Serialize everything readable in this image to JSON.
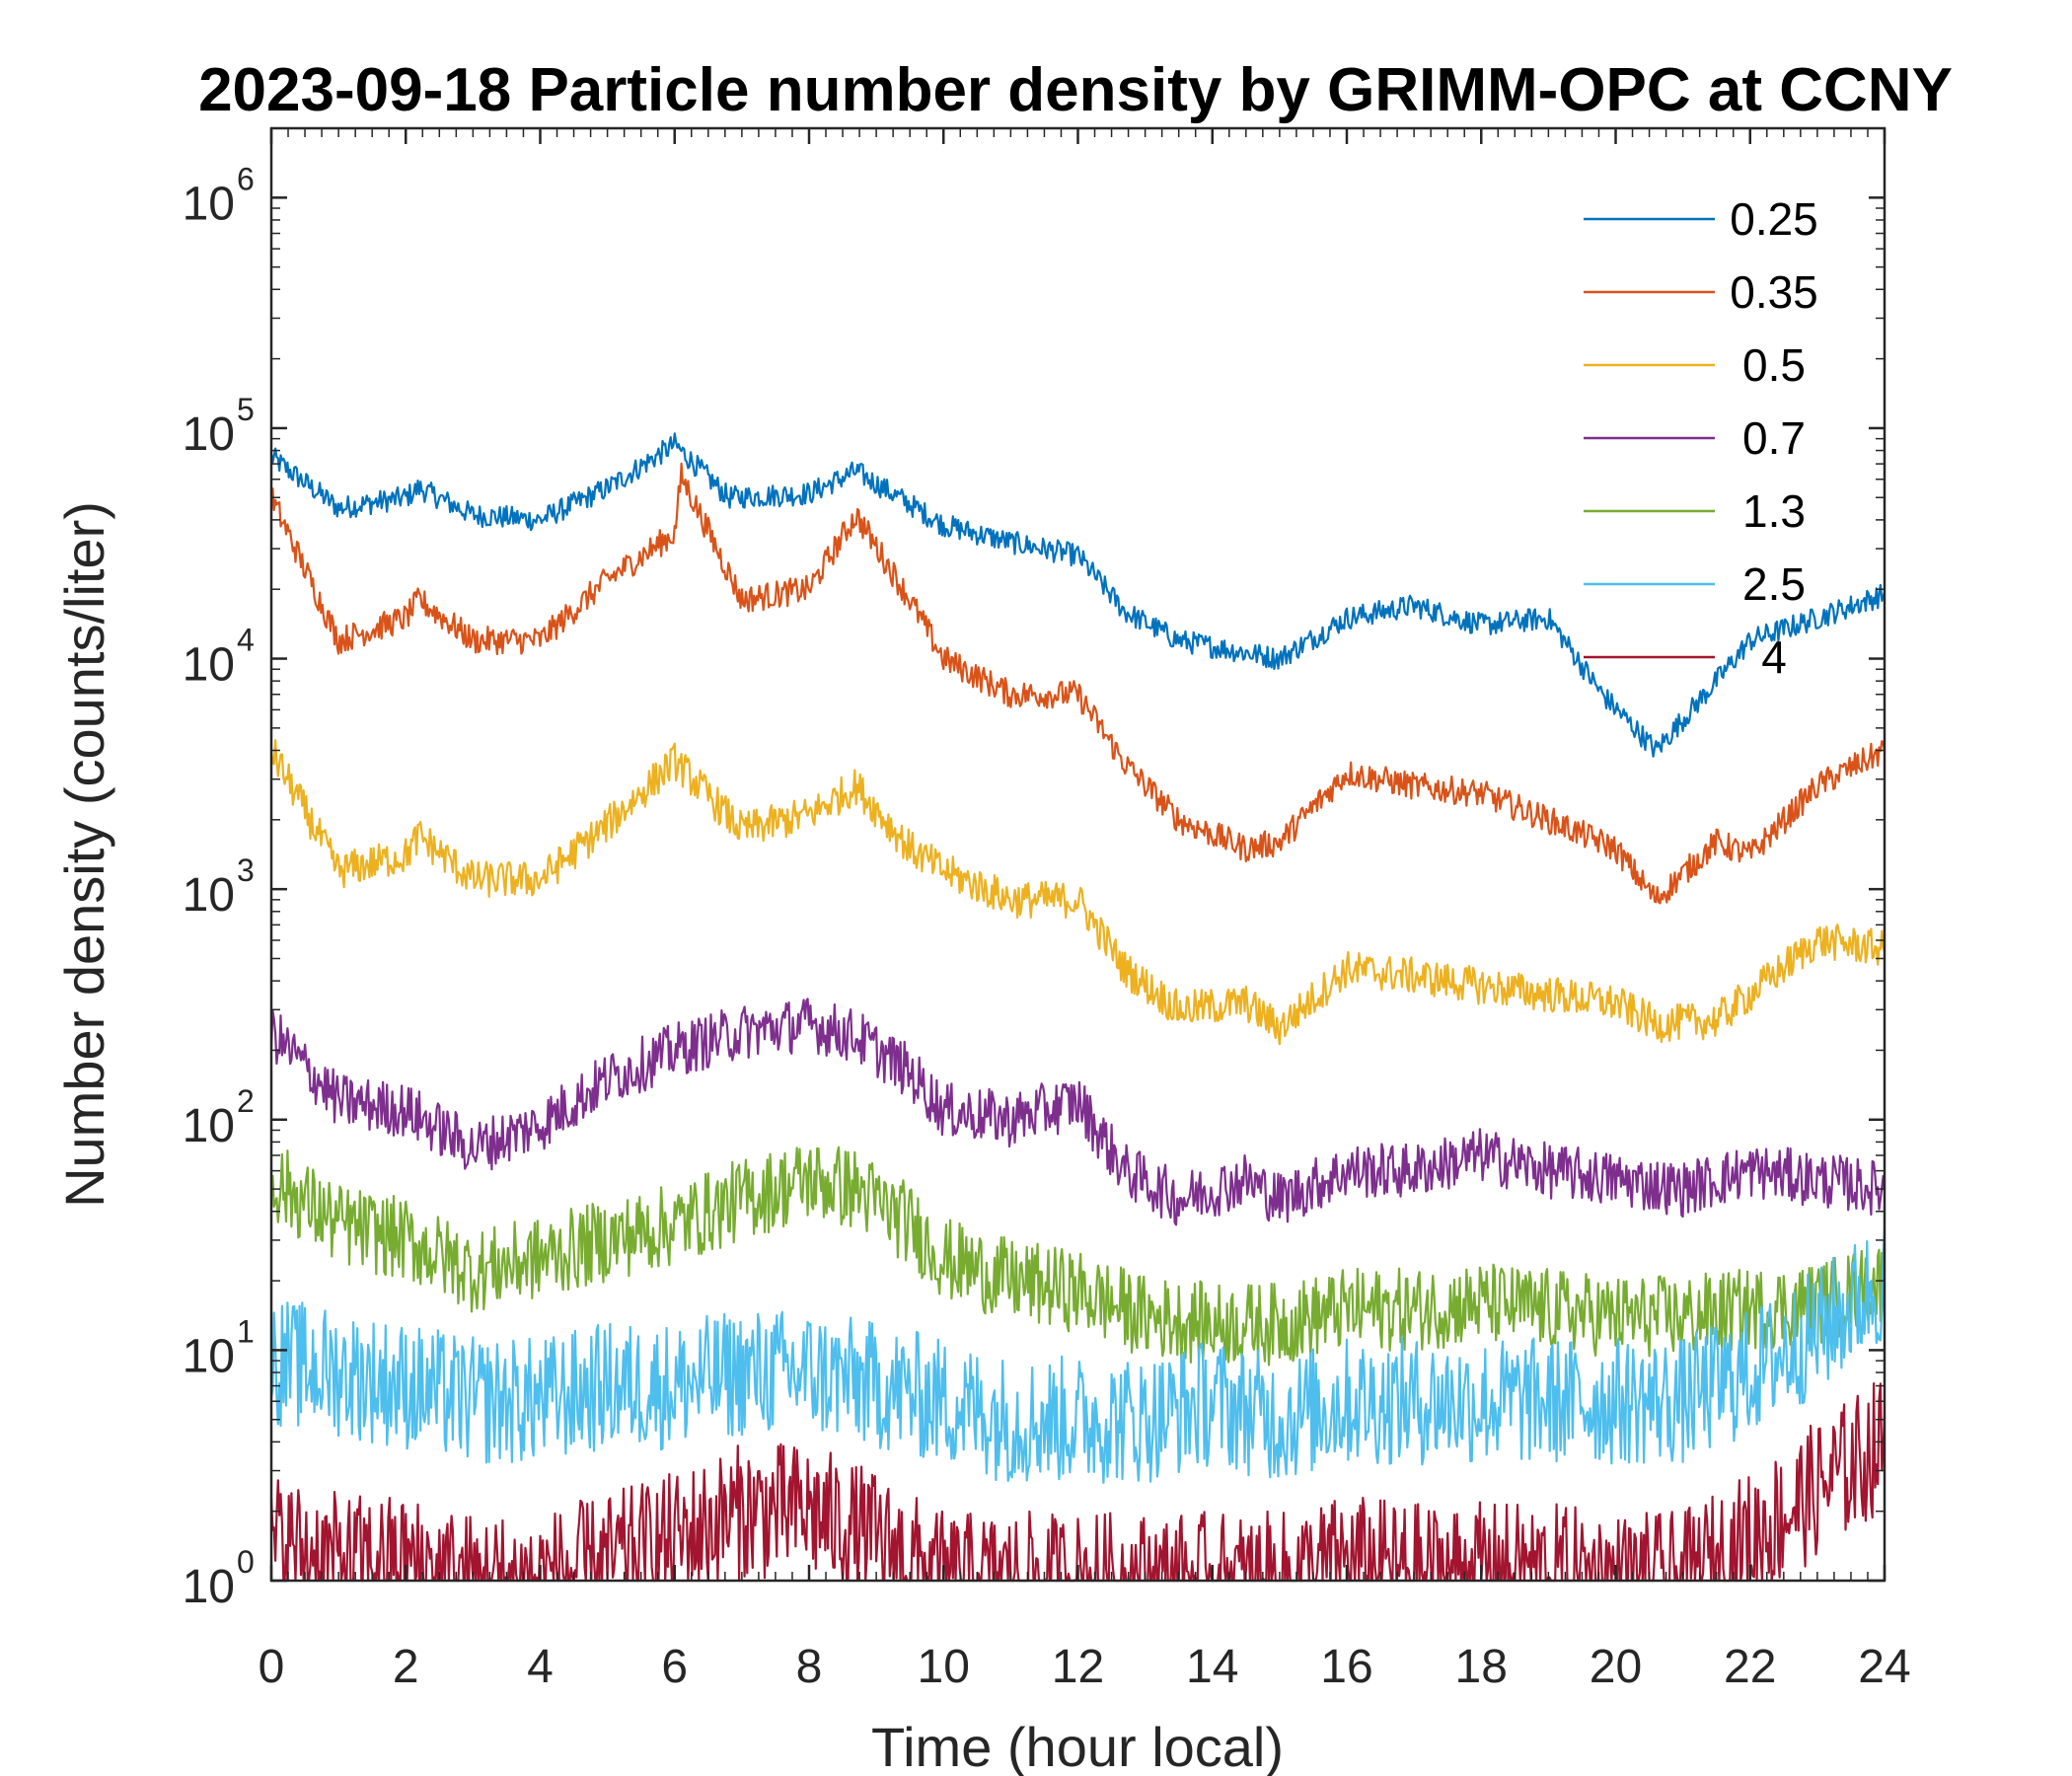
{
  "chart_data": {
    "type": "line",
    "title": "2023-09-18 Particle number density by GRIMM-OPC at CCNY",
    "xlabel": "Time (hour local)",
    "ylabel": "Number density (counts/liter)",
    "xlim": [
      0,
      24
    ],
    "ylim": [
      1,
      2000000
    ],
    "yscale": "log",
    "xticks": [
      0,
      2,
      4,
      6,
      8,
      10,
      12,
      14,
      16,
      18,
      20,
      22,
      24
    ],
    "xtick_labels": [
      "0",
      "2",
      "4",
      "6",
      "8",
      "10",
      "12",
      "14",
      "16",
      "18",
      "20",
      "22",
      "24"
    ],
    "yticks": [
      1,
      10,
      100,
      1000,
      10000,
      100000,
      1000000
    ],
    "ytick_base": "10",
    "ytick_exponents": [
      "0",
      "1",
      "2",
      "3",
      "4",
      "5",
      "6"
    ],
    "legend_position": "top-right",
    "grid": false,
    "series": [
      {
        "name": "0.25",
        "color": "#0072BD",
        "x": [
          0,
          1,
          2,
          2.2,
          3,
          4,
          5,
          6,
          6.8,
          8,
          8.7,
          10,
          11,
          12,
          12.7,
          13.5,
          15,
          16,
          17,
          18,
          19,
          19.8,
          20.6,
          21.5,
          22,
          23,
          24
        ],
        "y": [
          75000,
          45000,
          50000,
          55000,
          42000,
          40000,
          55000,
          85000,
          50000,
          52000,
          65000,
          38000,
          32000,
          28000,
          16000,
          12000,
          10000,
          15000,
          17000,
          14000,
          15000,
          7000,
          4000,
          8000,
          12000,
          15000,
          19000
        ]
      },
      {
        "name": "0.35",
        "color": "#D95319",
        "x": [
          0,
          1,
          2,
          2.2,
          3,
          4,
          5,
          6,
          6.1,
          7,
          8,
          8.7,
          9.5,
          10,
          11,
          12,
          12.7,
          13.5,
          14.5,
          15,
          16,
          17,
          18,
          19,
          20,
          20.6,
          21.5,
          22,
          23,
          24
        ],
        "y": [
          50000,
          12000,
          15000,
          18000,
          12000,
          12000,
          22000,
          35000,
          62000,
          18000,
          20000,
          42000,
          18000,
          10000,
          7000,
          7000,
          3500,
          2000,
          1500,
          1600,
          3200,
          2800,
          2600,
          2000,
          1500,
          900,
          1600,
          1400,
          2800,
          4000
        ]
      },
      {
        "name": "0.5",
        "color": "#EDB120",
        "x": [
          0,
          1,
          2,
          2.2,
          3,
          4,
          5,
          6,
          7,
          8,
          8.7,
          9.5,
          10,
          11,
          12,
          12.7,
          13.5,
          14.5,
          15,
          16,
          17,
          18,
          19,
          20,
          20.6,
          21.5,
          22,
          23,
          24
        ],
        "y": [
          4000,
          1200,
          1400,
          1700,
          1100,
          1100,
          1900,
          3600,
          1800,
          2100,
          2800,
          1500,
          1200,
          900,
          900,
          450,
          300,
          320,
          250,
          450,
          420,
          380,
          350,
          320,
          260,
          270,
          350,
          600,
          550
        ]
      },
      {
        "name": "0.7",
        "color": "#7E2F8E",
        "x": [
          0,
          1,
          2,
          3,
          4,
          5,
          6,
          7,
          8,
          8.7,
          9.5,
          10,
          11,
          12,
          12.7,
          13.5,
          14.5,
          15,
          16,
          17,
          18,
          19,
          20,
          21,
          22,
          23,
          24
        ],
        "y": [
          240,
          120,
          110,
          75,
          95,
          150,
          200,
          240,
          260,
          230,
          160,
          110,
          100,
          120,
          60,
          45,
          55,
          45,
          60,
          60,
          70,
          60,
          55,
          50,
          60,
          55,
          50
        ]
      },
      {
        "name": "1.3",
        "color": "#77AC30",
        "x": [
          0,
          1,
          2,
          3,
          4,
          5,
          6,
          7,
          8,
          8.7,
          9.5,
          10,
          11,
          12,
          13,
          14,
          15,
          16,
          17,
          18,
          19,
          20,
          21,
          22,
          23,
          24
        ],
        "y": [
          55,
          35,
          30,
          22,
          25,
          30,
          35,
          45,
          55,
          50,
          35,
          25,
          20,
          18,
          14,
          13,
          13,
          15,
          15,
          16,
          15,
          14,
          14,
          15,
          16,
          20
        ]
      },
      {
        "name": "2.5",
        "color": "#4DBEEE",
        "x": [
          0,
          1,
          2,
          3,
          4,
          5,
          6,
          7,
          8,
          9,
          10,
          11,
          12,
          13,
          14,
          15,
          16,
          17,
          18,
          19,
          20,
          21,
          22,
          23,
          24
        ],
        "y": [
          9,
          8,
          7,
          6,
          6,
          7,
          7,
          8,
          8,
          7,
          6,
          5,
          5,
          5,
          6,
          5,
          6,
          6,
          6,
          6,
          6,
          6,
          8,
          12,
          20
        ]
      },
      {
        "name": "4",
        "color": "#A2142F",
        "x": [
          0,
          1,
          2,
          3,
          4,
          5,
          6,
          7,
          8,
          9,
          10,
          11,
          12,
          13,
          14,
          15,
          16,
          17,
          18,
          19,
          20,
          21,
          22,
          23,
          24
        ],
        "y": [
          1.5,
          1.2,
          1.2,
          1,
          1,
          1.2,
          1.5,
          2,
          2,
          1.5,
          1,
          1,
          1,
          1,
          1,
          1,
          1.2,
          1.1,
          1.1,
          1.1,
          1,
          1,
          1.5,
          2.5,
          4
        ]
      }
    ]
  }
}
